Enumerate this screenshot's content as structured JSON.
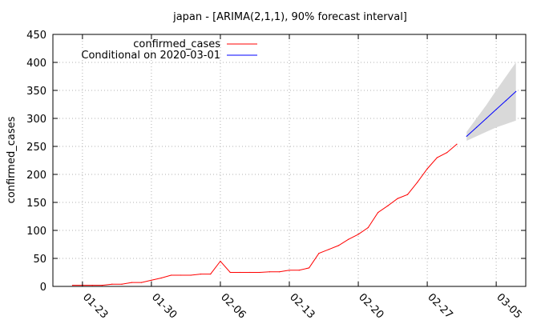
{
  "chart_data": {
    "type": "line",
    "title": "japan -  [ARIMA(2,1,1), 90% forecast interval]",
    "xlabel": "",
    "ylabel": "confirmed_cases",
    "ylim": [
      0,
      450
    ],
    "yticks": [
      0,
      50,
      100,
      150,
      200,
      250,
      300,
      350,
      400,
      450
    ],
    "xlim_day": [
      -2,
      46
    ],
    "x_origin_date": "2020-01-22",
    "xticks": [
      {
        "day": 1,
        "label": "01-23"
      },
      {
        "day": 8,
        "label": "01-30"
      },
      {
        "day": 15,
        "label": "02-06"
      },
      {
        "day": 22,
        "label": "02-13"
      },
      {
        "day": 29,
        "label": "02-20"
      },
      {
        "day": 36,
        "label": "02-27"
      },
      {
        "day": 43,
        "label": "03-05"
      }
    ],
    "grid": true,
    "legend_position": "top-left",
    "series": [
      {
        "name": "confirmed_cases",
        "color": "#ff0000",
        "x": [
          0,
          1,
          2,
          3,
          4,
          5,
          6,
          7,
          8,
          9,
          10,
          11,
          12,
          13,
          14,
          15,
          16,
          17,
          18,
          19,
          20,
          21,
          22,
          23,
          24,
          25,
          26,
          27,
          28,
          29,
          30,
          31,
          32,
          33,
          34,
          35,
          36,
          37,
          38,
          39
        ],
        "values": [
          2,
          2,
          2,
          2,
          4,
          4,
          7,
          7,
          11,
          15,
          20,
          20,
          20,
          22,
          22,
          45,
          25,
          25,
          25,
          25,
          26,
          26,
          29,
          29,
          33,
          59,
          66,
          73,
          84,
          93,
          105,
          132,
          144,
          157,
          164,
          186,
          210,
          230,
          239,
          254
        ]
      },
      {
        "name": "Conditional on 2020-03-01",
        "color": "#0000ff",
        "x": [
          40,
          41,
          42,
          43,
          44,
          45
        ],
        "values": [
          268,
          284,
          300,
          316,
          332,
          348
        ]
      }
    ],
    "forecast_interval": {
      "level": "90%",
      "color": "#d9d9d9",
      "x": [
        40,
        41,
        42,
        43,
        44,
        45
      ],
      "lower": [
        260,
        268,
        276,
        284,
        290,
        296
      ],
      "upper": [
        276,
        300,
        324,
        350,
        375,
        400
      ]
    }
  }
}
